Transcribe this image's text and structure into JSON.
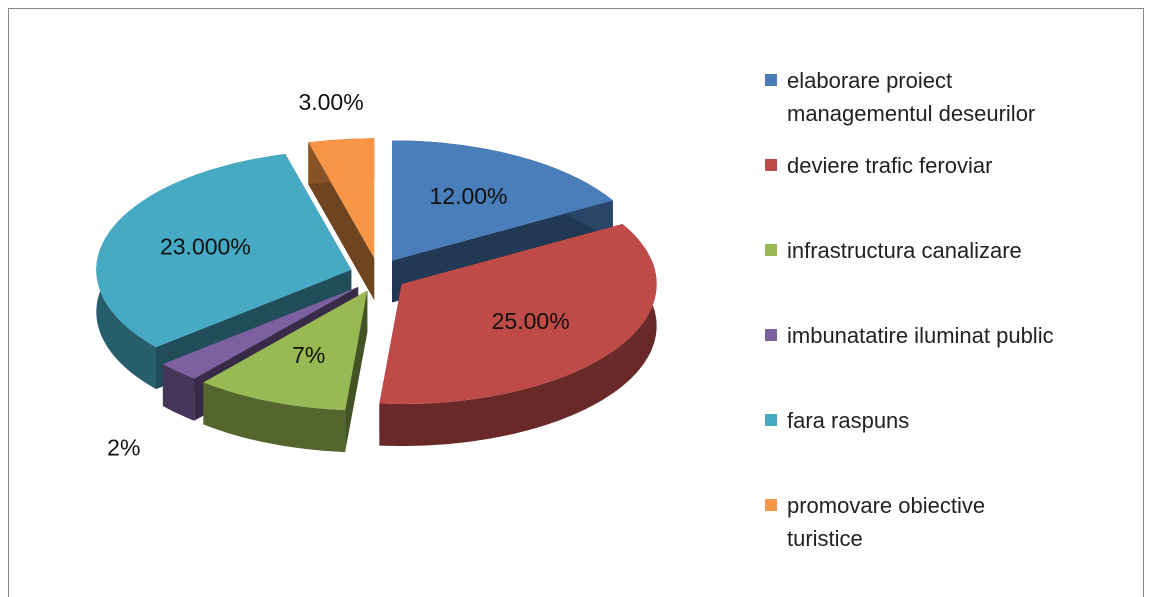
{
  "chart_data": {
    "type": "pie",
    "categories": [
      "elaborare proiect managementul deseurilor",
      "deviere trafic feroviar",
      "infrastructura canalizare",
      "imbunatatire iluminat public",
      "fara raspuns",
      "promovare obiective turistice"
    ],
    "values": [
      12,
      25,
      7,
      2,
      23,
      3
    ],
    "value_labels": [
      "12.00%",
      "25.00%",
      "7%",
      "2%",
      "23.000%",
      "3.00%"
    ],
    "colors": [
      "#4a7ebb",
      "#be4b48",
      "#98b954",
      "#7d60a0",
      "#46aac5",
      "#f79646"
    ],
    "legend": "right"
  }
}
